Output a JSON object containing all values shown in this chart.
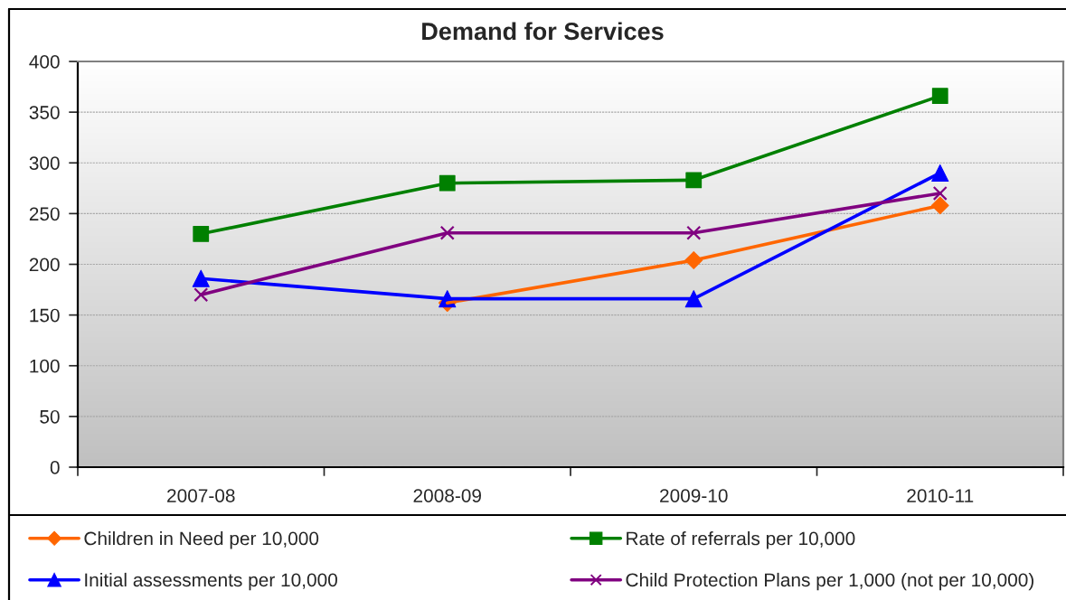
{
  "chart_data": {
    "type": "line",
    "title": "Demand for Services",
    "categories": [
      "2007-08",
      "2008-09",
      "2009-10",
      "2010-11"
    ],
    "series": [
      {
        "name": "Children in Need per 10,000",
        "color": "#ff6600",
        "marker": "diamond",
        "values": [
          null,
          162,
          204,
          258
        ]
      },
      {
        "name": "Rate of referrals per 10,000",
        "color": "#008000",
        "marker": "square",
        "values": [
          230,
          280,
          283,
          366
        ]
      },
      {
        "name": "Initial assessments per 10,000",
        "color": "#0000ff",
        "marker": "triangle",
        "values": [
          186,
          166,
          166,
          290
        ]
      },
      {
        "name": "Child Protection Plans per 1,000 (not per 10,000)",
        "color": "#800080",
        "marker": "cross",
        "values": [
          170,
          231,
          231,
          270
        ]
      }
    ],
    "ylim": [
      0,
      400
    ],
    "yticks": [
      0,
      50,
      100,
      150,
      200,
      250,
      300,
      350,
      400
    ],
    "grid": "y",
    "legend": "bottom",
    "line_style": "solid"
  }
}
